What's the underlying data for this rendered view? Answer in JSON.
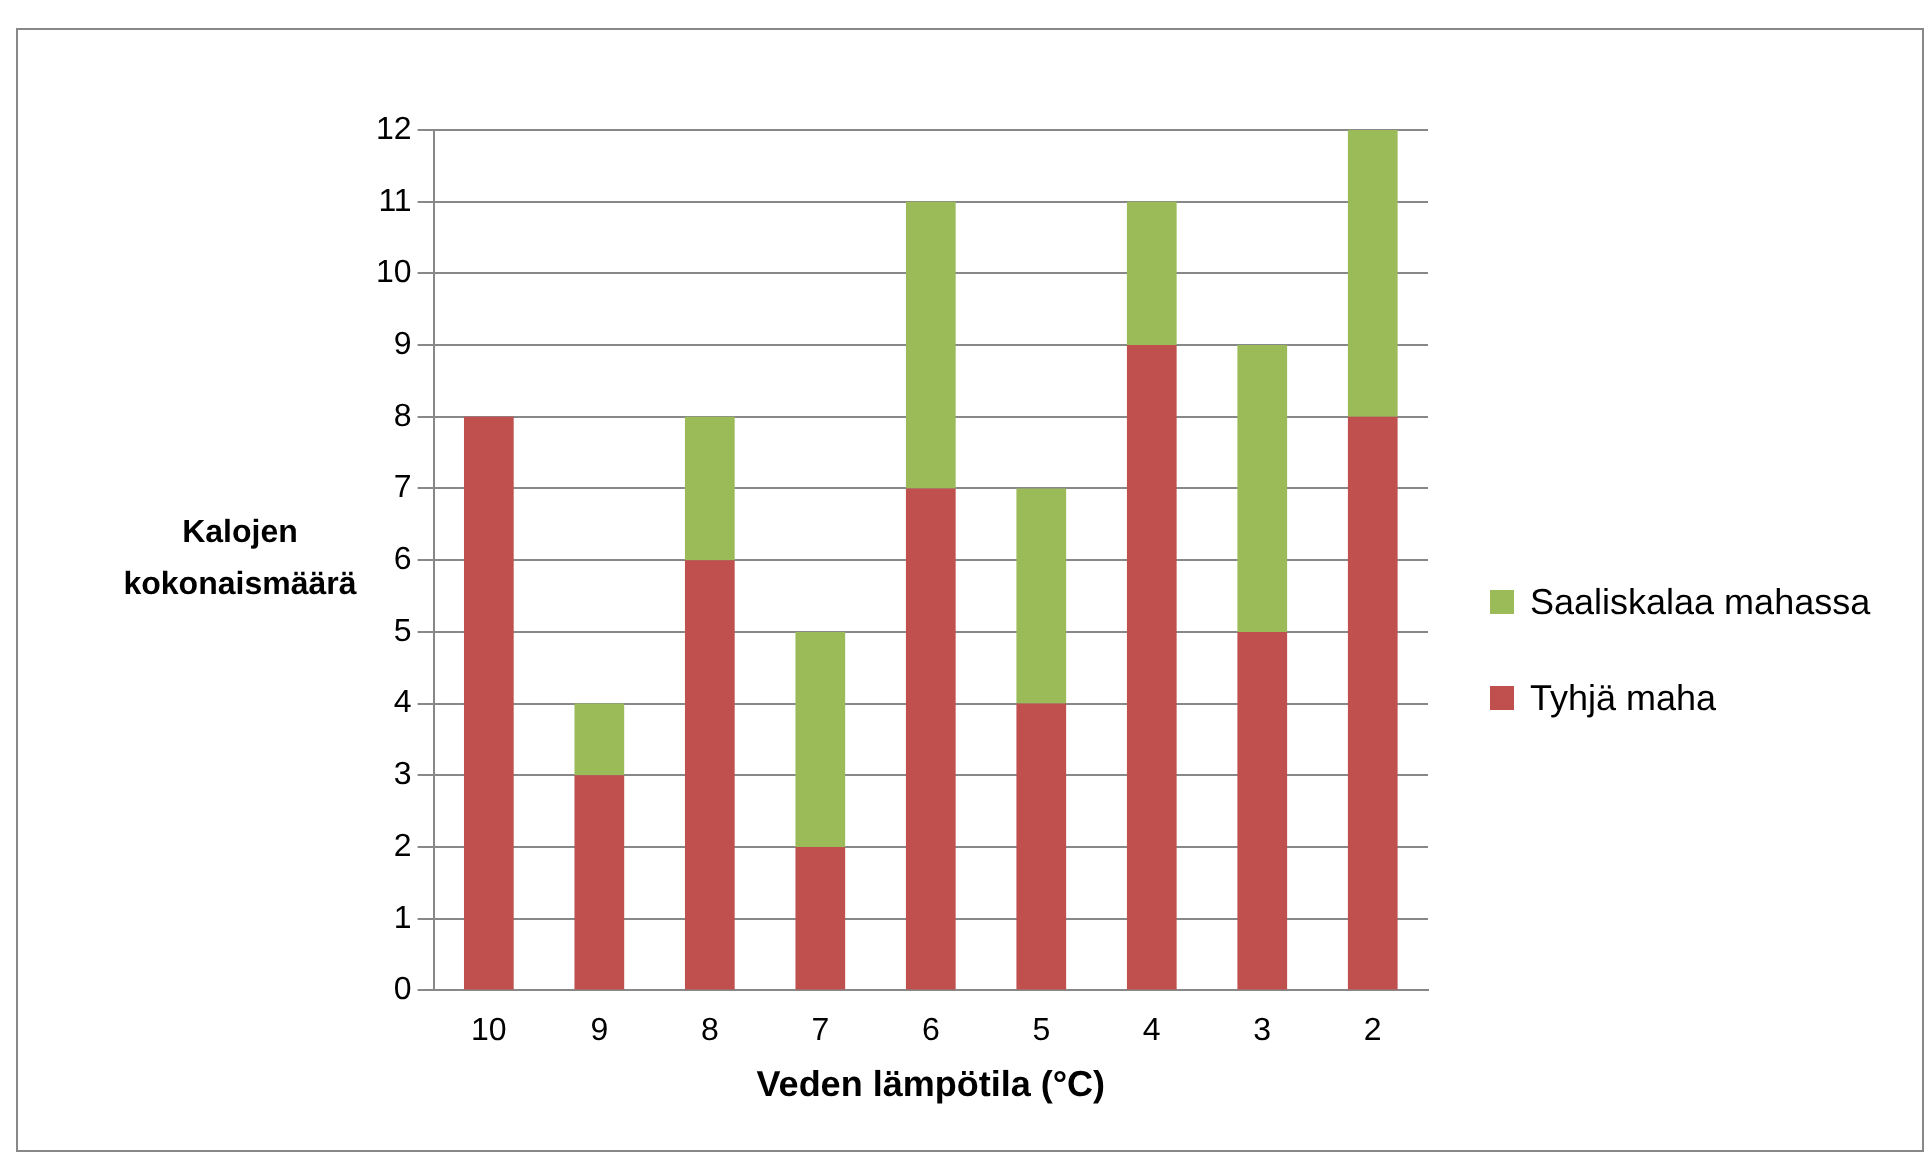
{
  "chart_data": {
    "type": "bar",
    "stacked": true,
    "xlabel": "Veden lämpötila (°C)",
    "ylabel": "Kalojen kokonaismäärä",
    "categories": [
      "10",
      "9",
      "8",
      "7",
      "6",
      "5",
      "4",
      "3",
      "2"
    ],
    "series": [
      {
        "name": "Tyhjä maha",
        "color": "#c0504d",
        "values": [
          8,
          3,
          6,
          2,
          7,
          4,
          9,
          5,
          8
        ]
      },
      {
        "name": "Saaliskalaa mahassa",
        "color": "#9bbb59",
        "values": [
          null,
          1,
          2,
          3,
          4,
          3,
          2,
          4,
          4
        ]
      }
    ],
    "ylim": [
      0,
      12
    ],
    "yticks": [
      0,
      1,
      2,
      3,
      4,
      5,
      6,
      7,
      8,
      9,
      10,
      11,
      12
    ],
    "grid": "y",
    "legend": "right"
  }
}
